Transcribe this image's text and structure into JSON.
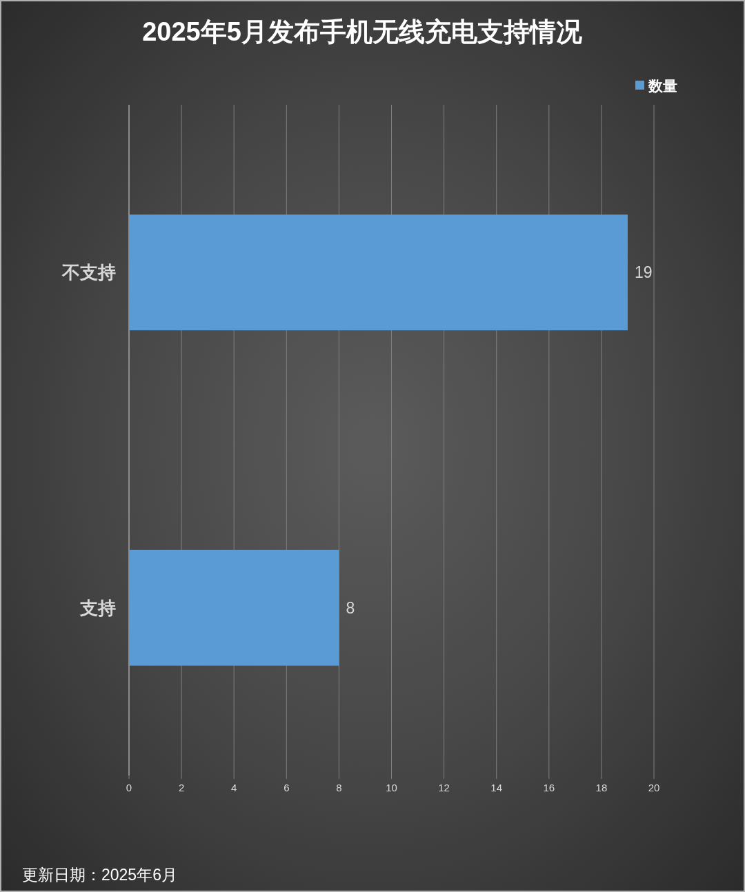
{
  "chart_data": {
    "type": "bar",
    "orientation": "horizontal",
    "title": "2025年5月发布手机无线充电支持情况",
    "categories": [
      "不支持",
      "支持"
    ],
    "series": [
      {
        "name": "数量",
        "color": "#5b9bd5",
        "values": [
          19,
          8
        ]
      }
    ],
    "xlim": [
      0,
      20
    ],
    "xticks": [
      0,
      2,
      4,
      6,
      8,
      10,
      12,
      14,
      16,
      18,
      20
    ],
    "grid": "x",
    "legend": "top right",
    "data_labels": true,
    "annotations": [
      "更新日期：2025年6月"
    ]
  }
}
